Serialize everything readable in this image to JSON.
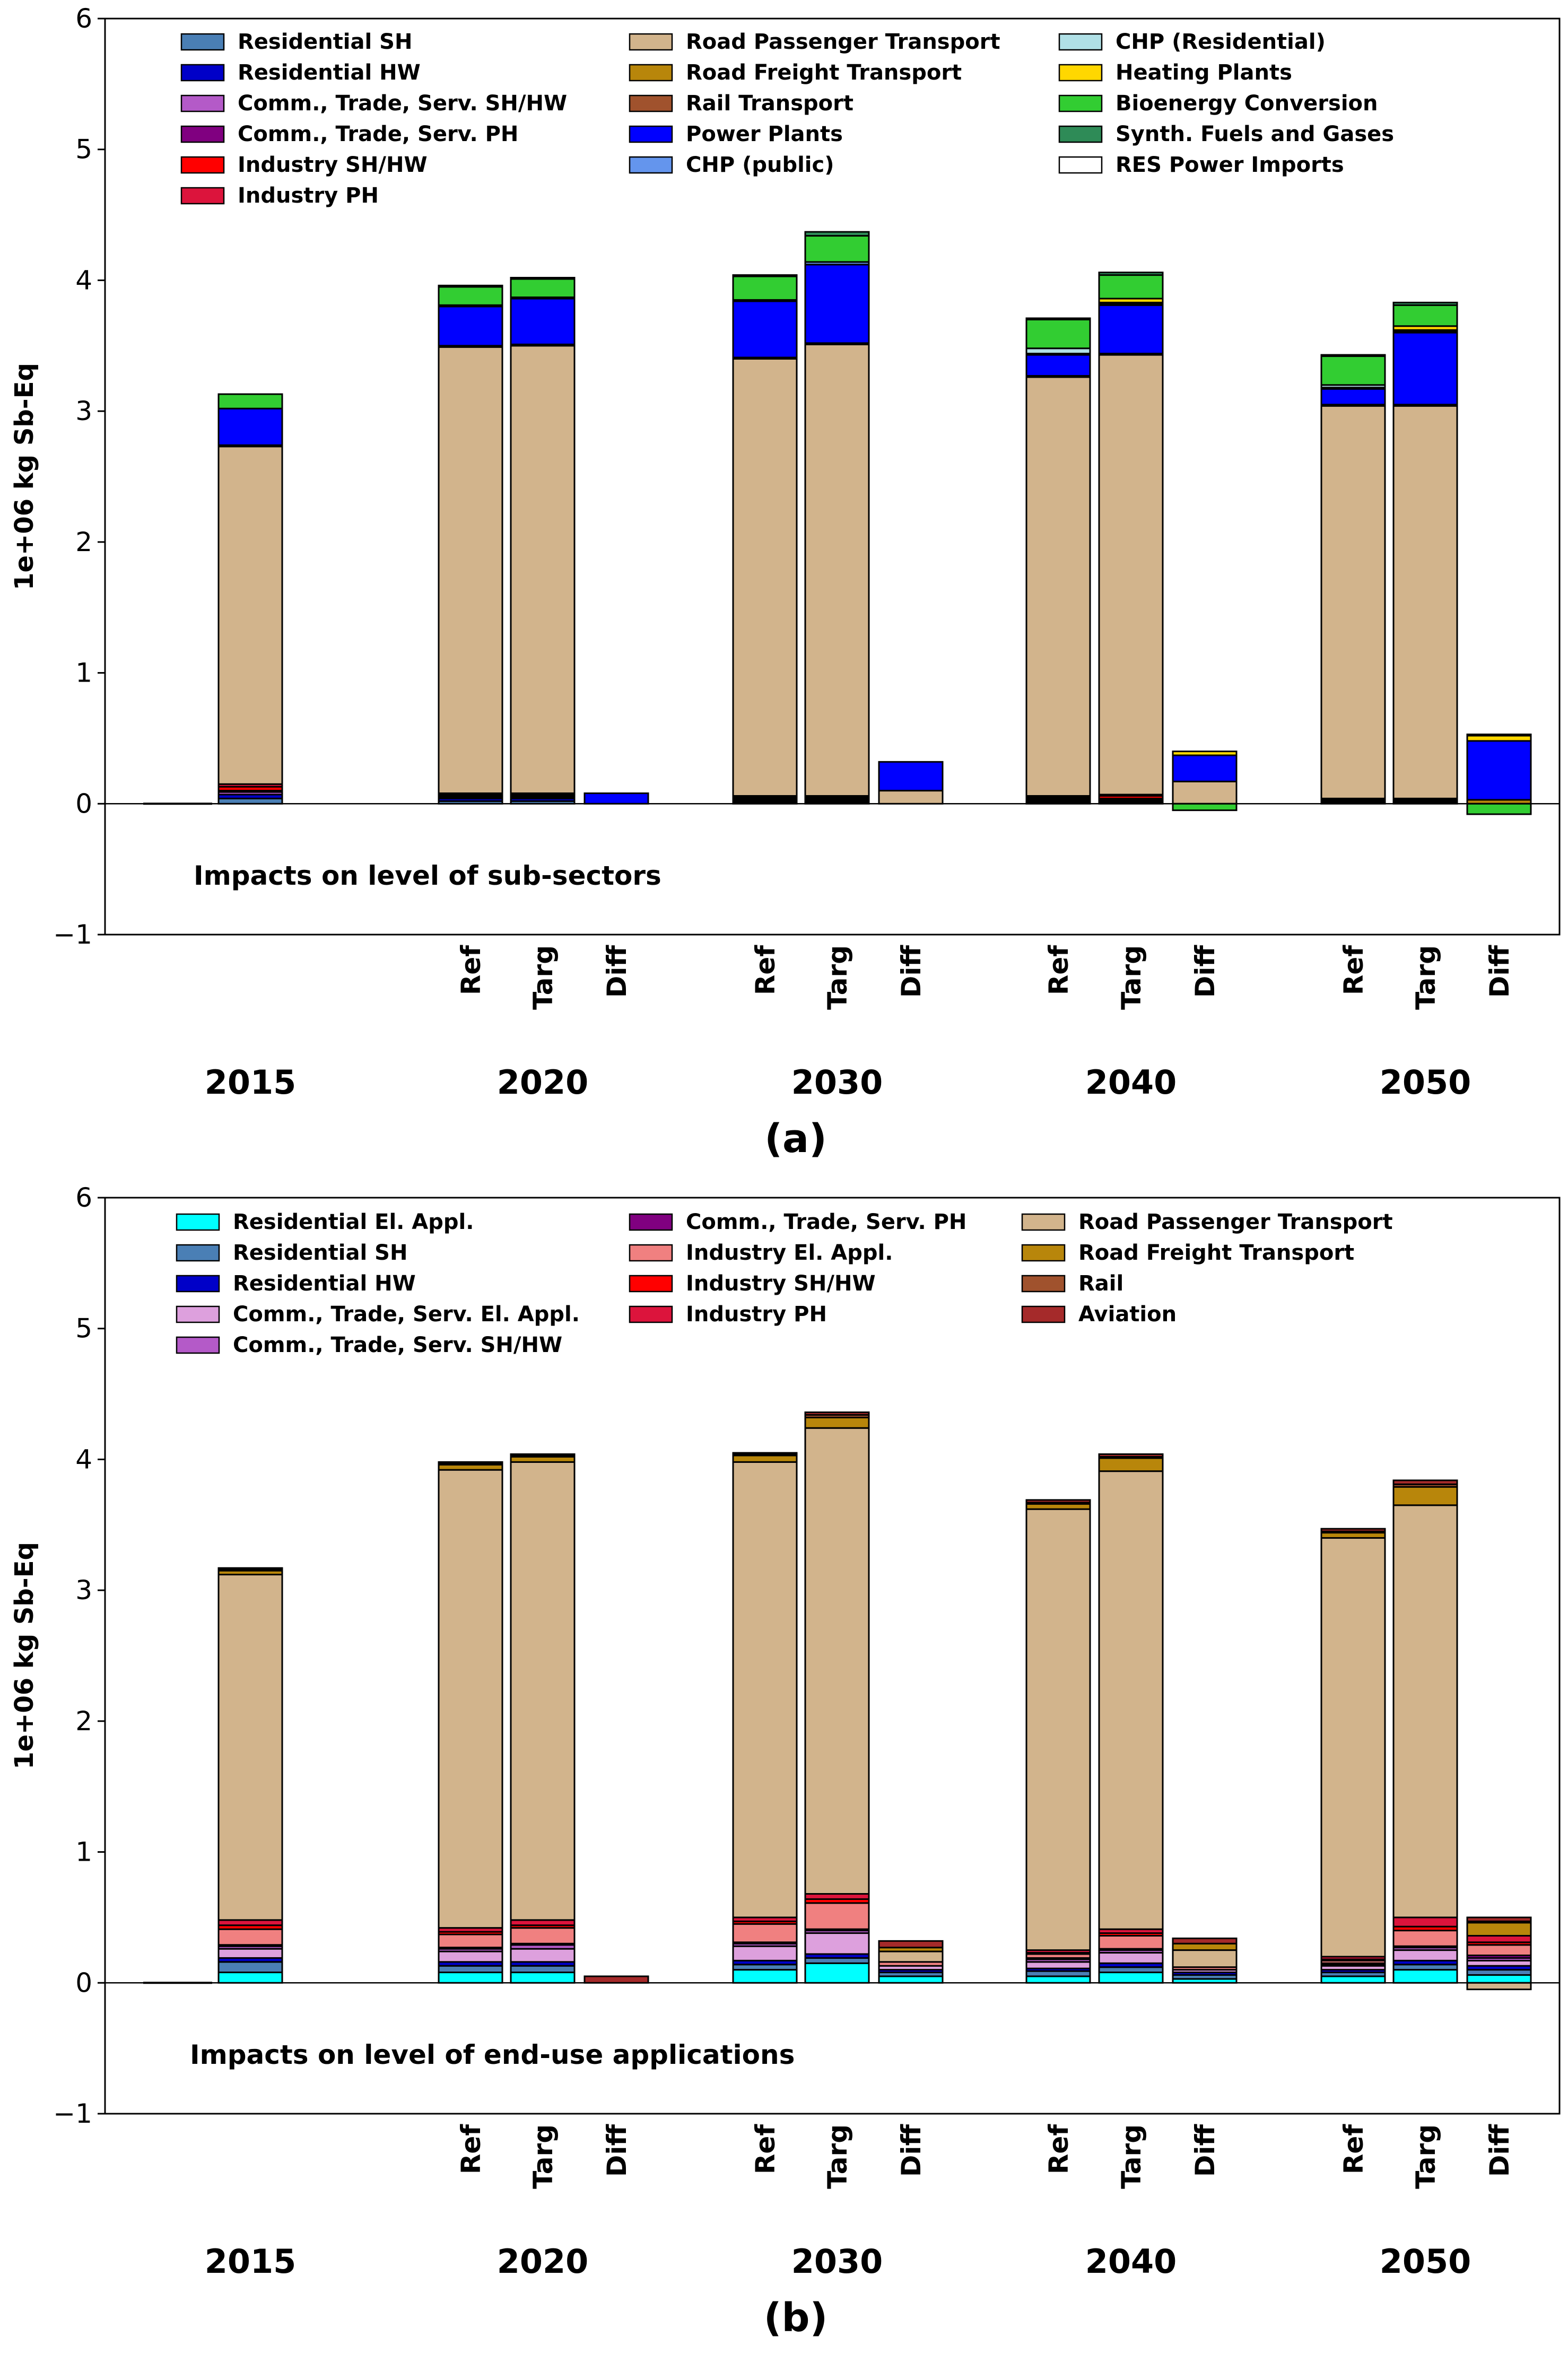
{
  "chart_data": [
    {
      "panel_label": "(a)",
      "type": "bar",
      "stacked": true,
      "note": "Impacts on level of sub-sectors",
      "ylabel": "1e+06 kg Sb-Eq",
      "ylim": [
        -1,
        6
      ],
      "yticks": [
        "−1",
        "0",
        "1",
        "2",
        "3",
        "4",
        "5",
        "6"
      ],
      "year_labels": [
        "2015",
        "2020",
        "2030",
        "2040",
        "2050"
      ],
      "condition_labels": [
        "Ref",
        "Targ",
        "Diff"
      ],
      "categories": [
        "2015",
        "2020 Ref",
        "2020 Targ",
        "2020 Diff",
        "2030 Ref",
        "2030 Targ",
        "2030 Diff",
        "2040 Ref",
        "2040 Targ",
        "2040 Diff",
        "2050 Ref",
        "2050 Targ",
        "2050 Diff"
      ],
      "series": [
        {
          "name": "Residential SH",
          "color": "#4a7fb5",
          "values": [
            0.04,
            0.02,
            0.02,
            0,
            0.01,
            0.01,
            0,
            0.01,
            0.01,
            0,
            0.01,
            0.01,
            0
          ]
        },
        {
          "name": "Residential HW",
          "color": "#0000c8",
          "values": [
            0.03,
            0.02,
            0.02,
            0,
            0.01,
            0.01,
            0,
            0.01,
            0.01,
            0,
            0.01,
            0.01,
            0
          ]
        },
        {
          "name": "Comm., Trade, Serv. SH/HW",
          "color": "#b45ac8",
          "values": [
            0.02,
            0.01,
            0.01,
            0,
            0.01,
            0.01,
            0,
            0.01,
            0.01,
            0,
            0,
            0,
            0
          ]
        },
        {
          "name": "Comm., Trade, Serv. PH",
          "color": "#800080",
          "values": [
            0.01,
            0.01,
            0.01,
            0,
            0.01,
            0.01,
            0,
            0.01,
            0.01,
            0,
            0,
            0,
            0
          ]
        },
        {
          "name": "Industry SH/HW",
          "color": "#ff0000",
          "values": [
            0.03,
            0.01,
            0.01,
            0,
            0.01,
            0.01,
            0,
            0.01,
            0.02,
            0,
            0.01,
            0.01,
            0
          ]
        },
        {
          "name": "Industry PH",
          "color": "#dc143c",
          "values": [
            0.02,
            0.01,
            0.01,
            0,
            0.01,
            0.01,
            0,
            0.01,
            0.01,
            0,
            0.01,
            0.01,
            0
          ]
        },
        {
          "name": "Road Passenger Transport",
          "color": "#d2b48c",
          "values": [
            2.58,
            3.41,
            3.42,
            0,
            3.34,
            3.45,
            0.1,
            3.2,
            3.36,
            0.17,
            3.0,
            3.0,
            0
          ]
        },
        {
          "name": "Road Freight Transport",
          "color": "#b8860b",
          "values": [
            0,
            0,
            0,
            0,
            0,
            0,
            0,
            0,
            0,
            0,
            0,
            0,
            0.03
          ]
        },
        {
          "name": "Rail Transport",
          "color": "#a0522d",
          "values": [
            0.01,
            0.01,
            0.01,
            0,
            0.01,
            0.01,
            0,
            0.01,
            0.01,
            0,
            0.01,
            0.01,
            0
          ]
        },
        {
          "name": "Power Plants",
          "color": "#0000ff",
          "values": [
            0.28,
            0.3,
            0.35,
            0.08,
            0.43,
            0.6,
            0.22,
            0.16,
            0.37,
            0.2,
            0.12,
            0.55,
            0.45
          ]
        },
        {
          "name": "CHP (public)",
          "color": "#6495ed",
          "values": [
            0,
            0.01,
            0.01,
            0,
            0.01,
            0.02,
            0,
            0.01,
            0.01,
            0,
            0.01,
            0.01,
            0
          ]
        },
        {
          "name": "CHP (Residential)",
          "color": "#b0e0e6",
          "values": [
            0,
            0,
            0,
            0,
            0,
            0,
            0,
            0.04,
            0.01,
            0,
            0.02,
            0.01,
            0
          ]
        },
        {
          "name": "Heating Plants",
          "color": "#ffd700",
          "values": [
            0,
            0,
            0,
            0,
            0,
            0,
            0,
            0,
            0.03,
            0.03,
            0,
            0.03,
            0.04
          ]
        },
        {
          "name": "Bioenergy Conversion",
          "color": "#32cd32",
          "values": [
            0.11,
            0.14,
            0.14,
            0,
            0.18,
            0.2,
            0,
            0.22,
            0.18,
            -0.05,
            0.22,
            0.16,
            -0.08
          ]
        },
        {
          "name": "Synth. Fuels and Gases",
          "color": "#2e8b57",
          "values": [
            0,
            0.01,
            0.01,
            0,
            0.01,
            0.03,
            0,
            0.01,
            0.02,
            0,
            0.01,
            0.02,
            0.01
          ]
        },
        {
          "name": "RES Power Imports",
          "color": "#ffffff",
          "values": [
            0,
            0,
            0,
            0,
            0,
            0,
            0,
            0,
            0,
            0,
            0,
            0,
            0
          ]
        }
      ]
    },
    {
      "panel_label": "(b)",
      "type": "bar",
      "stacked": true,
      "note": "Impacts on level of end-use applications",
      "ylabel": "1e+06 kg Sb-Eq",
      "ylim": [
        -1,
        6
      ],
      "yticks": [
        "−1",
        "0",
        "1",
        "2",
        "3",
        "4",
        "5",
        "6"
      ],
      "year_labels": [
        "2015",
        "2020",
        "2030",
        "2040",
        "2050"
      ],
      "condition_labels": [
        "Ref",
        "Targ",
        "Diff"
      ],
      "categories": [
        "2015",
        "2020 Ref",
        "2020 Targ",
        "2020 Diff",
        "2030 Ref",
        "2030 Targ",
        "2030 Diff",
        "2040 Ref",
        "2040 Targ",
        "2040 Diff",
        "2050 Ref",
        "2050 Targ",
        "2050 Diff"
      ],
      "series": [
        {
          "name": "Residential El. Appl.",
          "color": "#00ffff",
          "values": [
            0.08,
            0.08,
            0.08,
            0,
            0.1,
            0.15,
            0.05,
            0.05,
            0.08,
            0.03,
            0.05,
            0.1,
            0.06
          ]
        },
        {
          "name": "Residential SH",
          "color": "#4a7fb5",
          "values": [
            0.08,
            0.05,
            0.05,
            0,
            0.04,
            0.04,
            0.03,
            0.04,
            0.04,
            0.03,
            0.03,
            0.04,
            0.04
          ]
        },
        {
          "name": "Residential HW",
          "color": "#0000c8",
          "values": [
            0.03,
            0.03,
            0.03,
            0,
            0.03,
            0.03,
            0.02,
            0.02,
            0.03,
            0.02,
            0.02,
            0.03,
            0.03
          ]
        },
        {
          "name": "Comm., Trade, Serv. El. Appl.",
          "color": "#dda0dd",
          "values": [
            0.07,
            0.08,
            0.1,
            0,
            0.11,
            0.16,
            0.03,
            0.05,
            0.08,
            0.02,
            0.03,
            0.08,
            0.04
          ]
        },
        {
          "name": "Comm., Trade, Serv. SH/HW",
          "color": "#b45ac8",
          "values": [
            0.02,
            0.02,
            0.03,
            0,
            0.02,
            0.02,
            0,
            0.02,
            0.02,
            0,
            0.01,
            0.02,
            0.02
          ]
        },
        {
          "name": "Comm., Trade, Serv.  PH",
          "color": "#800080",
          "values": [
            0.01,
            0.01,
            0.01,
            0,
            0.01,
            0.01,
            0,
            0.01,
            0.01,
            0,
            0.01,
            0.01,
            0.02
          ]
        },
        {
          "name": "Industry El. Appl.",
          "color": "#f08080",
          "values": [
            0.12,
            0.1,
            0.12,
            0,
            0.14,
            0.2,
            0.03,
            0.03,
            0.1,
            0.02,
            0.02,
            0.12,
            0.08
          ]
        },
        {
          "name": "Industry SH/HW",
          "color": "#ff0000",
          "values": [
            0.03,
            0.02,
            0.02,
            0,
            0.02,
            0.03,
            0,
            0.01,
            0.02,
            0,
            0.01,
            0.03,
            0.02
          ]
        },
        {
          "name": "Industry PH",
          "color": "#dc143c",
          "values": [
            0.04,
            0.03,
            0.04,
            0,
            0.03,
            0.04,
            0,
            0.02,
            0.03,
            0,
            0.02,
            0.07,
            0.05
          ]
        },
        {
          "name": "Road Passenger Transport",
          "color": "#d2b48c",
          "values": [
            2.64,
            3.5,
            3.5,
            0,
            3.48,
            3.56,
            0.08,
            3.37,
            3.5,
            0.13,
            3.2,
            3.15,
            -0.05
          ]
        },
        {
          "name": "Road Freight Transport",
          "color": "#b8860b",
          "values": [
            0.03,
            0.04,
            0.04,
            0,
            0.05,
            0.08,
            0.03,
            0.04,
            0.1,
            0.05,
            0.04,
            0.14,
            0.1
          ]
        },
        {
          "name": "Rail",
          "color": "#a0522d",
          "values": [
            0.01,
            0.01,
            0.01,
            0,
            0.01,
            0.02,
            0,
            0.01,
            0.01,
            0,
            0.01,
            0.02,
            0.01
          ]
        },
        {
          "name": "Aviation",
          "color": "#a52a2a",
          "values": [
            0.01,
            0.01,
            0.01,
            0.05,
            0.01,
            0.02,
            0.05,
            0.02,
            0.02,
            0.04,
            0.02,
            0.03,
            0.03
          ]
        }
      ],
      "legend_order": [
        "Residential El. Appl.",
        "Residential SH",
        "Residential HW",
        "Comm., Trade, Serv. El. Appl.",
        "Comm., Trade, Serv. SH/HW",
        "Comm., Trade, Serv.  PH",
        "Industry El. Appl.",
        "Industry SH/HW",
        "Industry PH",
        "Road Passenger Transport",
        "Road Freight Transport",
        "Rail",
        "Aviation"
      ]
    }
  ]
}
